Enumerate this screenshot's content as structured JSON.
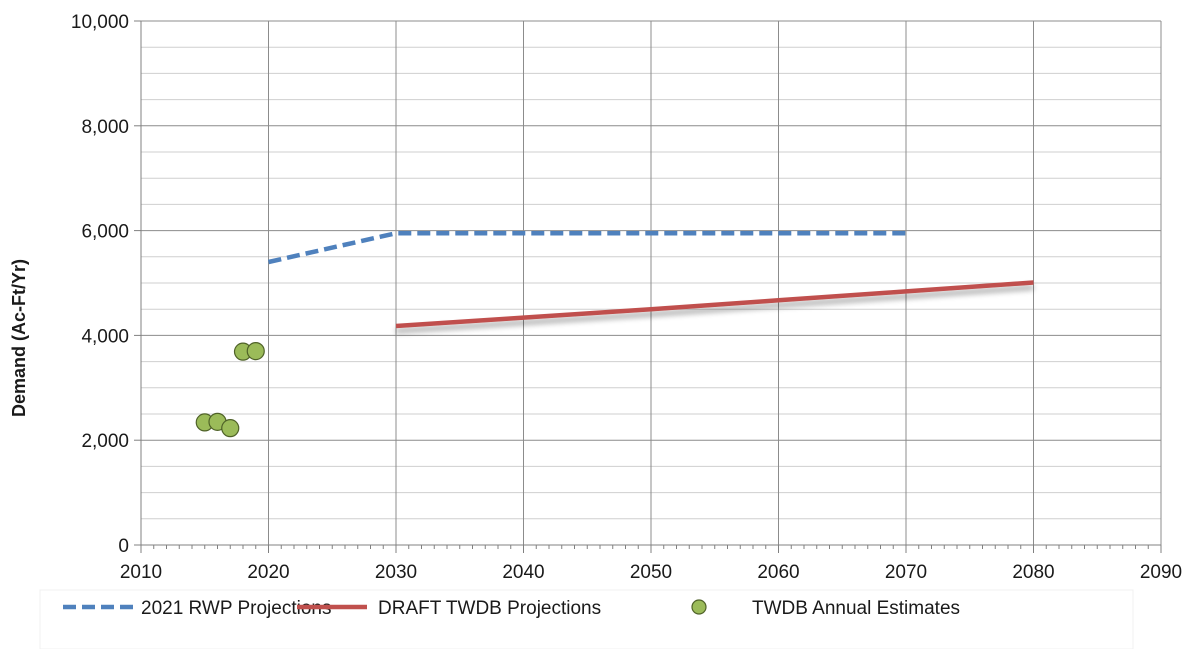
{
  "chart_data": {
    "type": "line",
    "title": "",
    "xlabel": "",
    "ylabel": "Demand (Ac-Ft/Yr)",
    "xlim": [
      2010,
      2090
    ],
    "ylim": [
      0,
      10000
    ],
    "x_ticks": [
      "2010",
      "2020",
      "2030",
      "2040",
      "2050",
      "2060",
      "2070",
      "2080",
      "2090"
    ],
    "y_ticks": [
      "0",
      "2,000",
      "4,000",
      "6,000",
      "8,000",
      "10,000"
    ],
    "grid": true,
    "legend_position": "bottom",
    "series": [
      {
        "name": "2021 RWP Projections",
        "type": "line",
        "style": "dashed",
        "color": "#4f81bd",
        "points": [
          [
            2020,
            5400
          ],
          [
            2030,
            5950
          ],
          [
            2040,
            5950
          ],
          [
            2050,
            5950
          ],
          [
            2060,
            5950
          ],
          [
            2070,
            5950
          ]
        ]
      },
      {
        "name": "DRAFT TWDB Projections",
        "type": "line",
        "style": "solid",
        "color": "#c0504d",
        "points": [
          [
            2030,
            4180
          ],
          [
            2040,
            4340
          ],
          [
            2050,
            4500
          ],
          [
            2060,
            4670
          ],
          [
            2070,
            4840
          ],
          [
            2080,
            5010
          ]
        ]
      },
      {
        "name": "TWDB Annual Estimates",
        "type": "scatter",
        "color": "#9bbb59",
        "points": [
          [
            2015,
            2340
          ],
          [
            2016,
            2350
          ],
          [
            2017,
            2230
          ],
          [
            2018,
            3690
          ],
          [
            2019,
            3700
          ]
        ]
      }
    ]
  }
}
